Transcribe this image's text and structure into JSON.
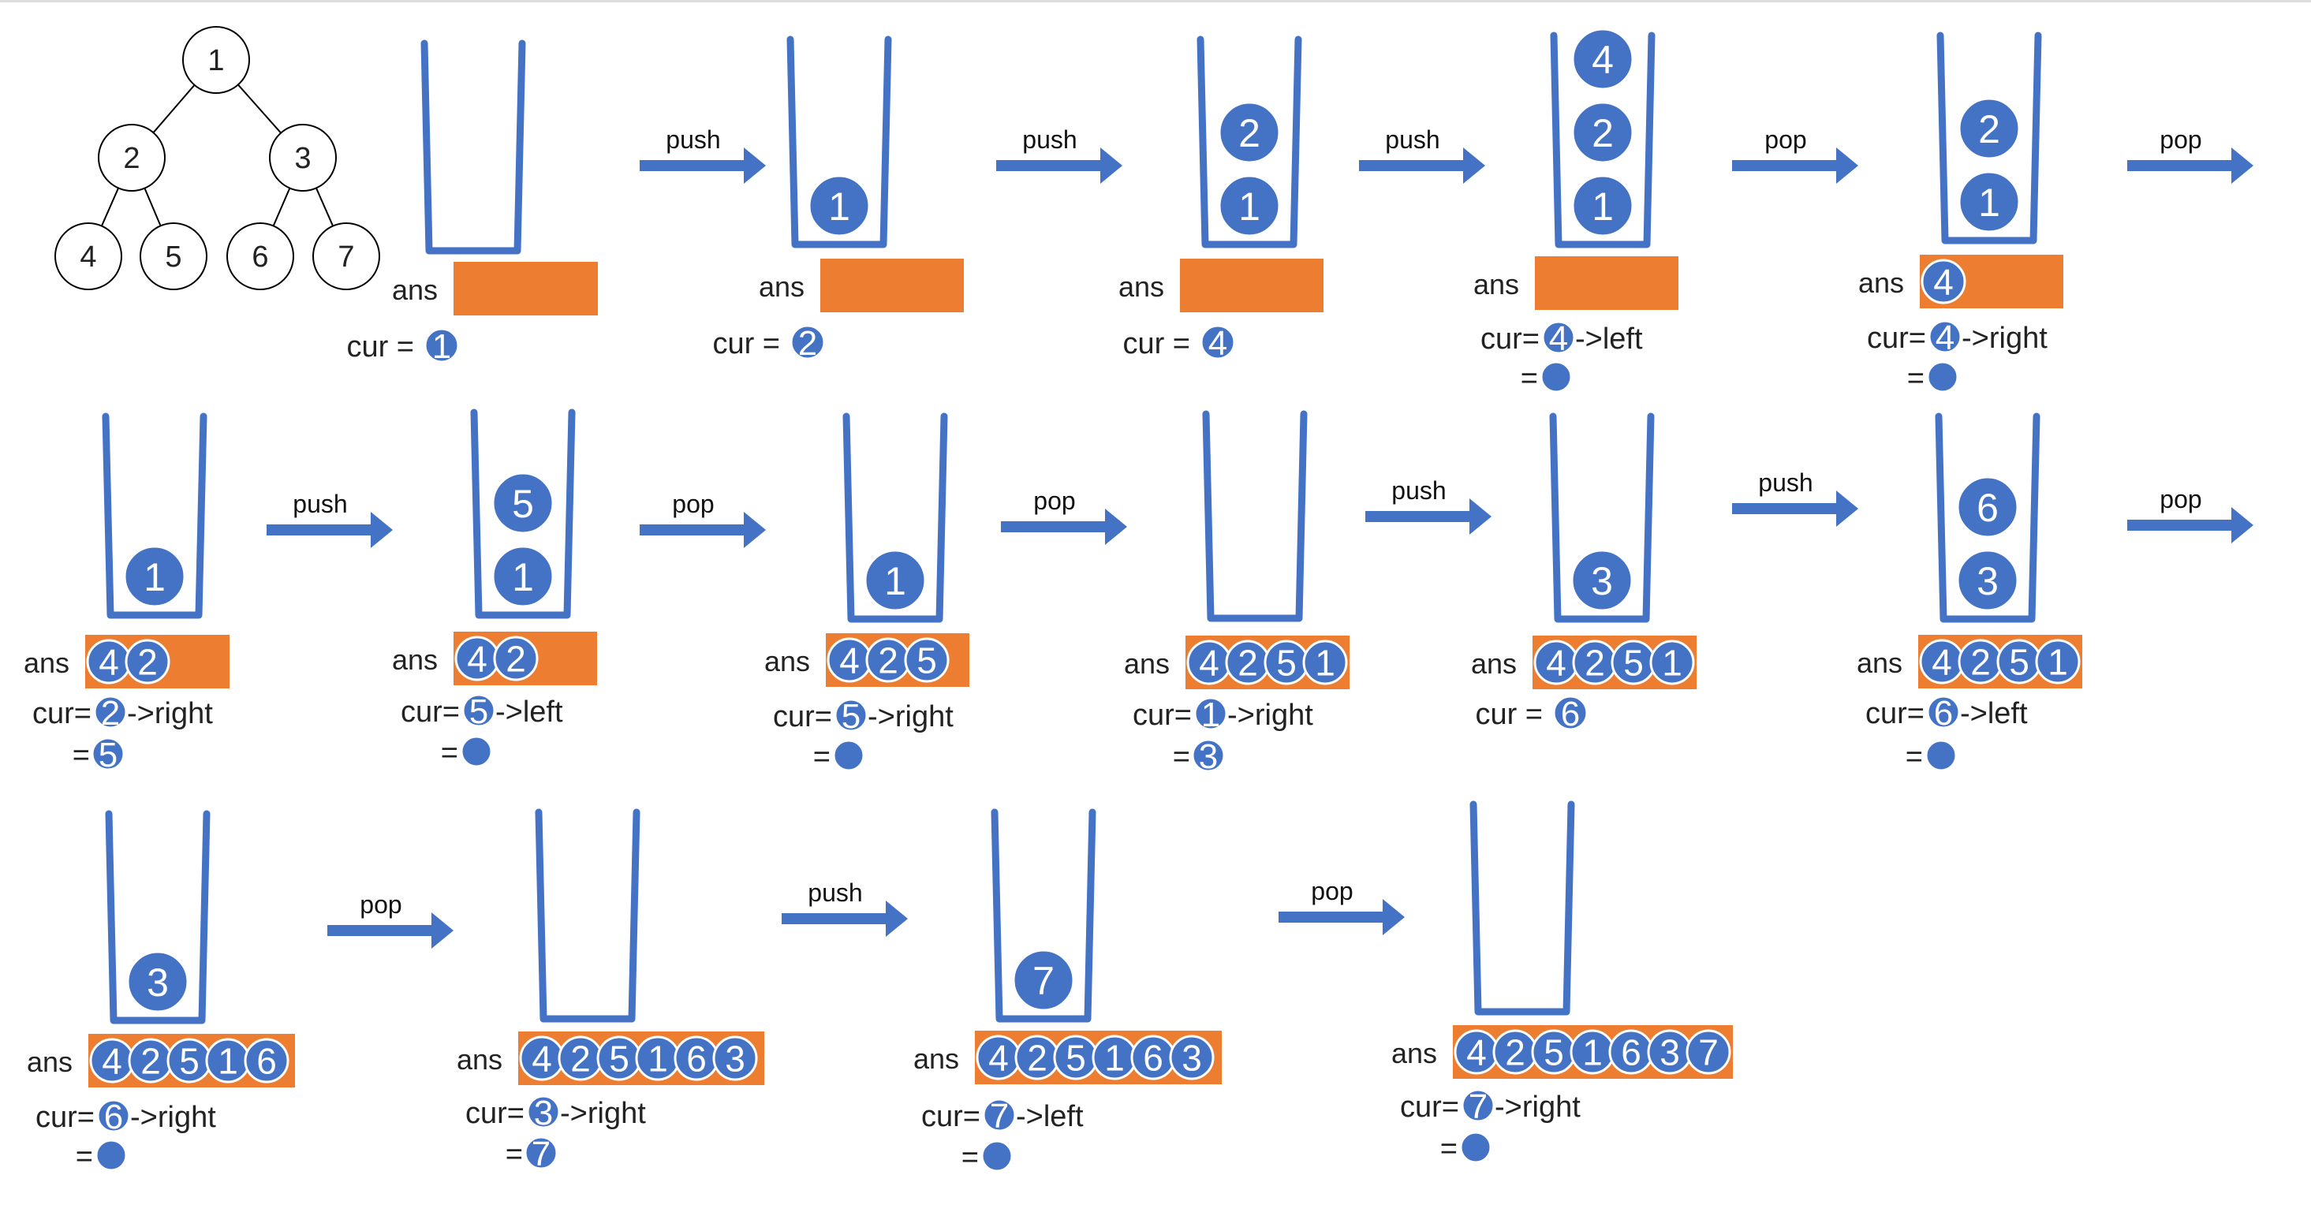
{
  "tree": {
    "nodes": [
      {
        "id": "1"
      },
      {
        "id": "2"
      },
      {
        "id": "3"
      },
      {
        "id": "4"
      },
      {
        "id": "5"
      },
      {
        "id": "6"
      },
      {
        "id": "7"
      }
    ],
    "edges": [
      [
        "1",
        "2"
      ],
      [
        "1",
        "3"
      ],
      [
        "2",
        "4"
      ],
      [
        "2",
        "5"
      ],
      [
        "3",
        "6"
      ],
      [
        "3",
        "7"
      ]
    ]
  },
  "labels": {
    "ans": "ans",
    "cur_eq": "cur =",
    "cur": "cur=",
    "eq": "=",
    "left": "->left",
    "right": "->right"
  },
  "colors": {
    "ball": "#4472c4",
    "ans_box": "#ed7d31",
    "arrow": "#4472c4",
    "cup": "#4472c4"
  },
  "steps": [
    {
      "stack": [],
      "ans": [],
      "cur": "1",
      "dir": null,
      "result": null,
      "empty_result": false
    },
    {
      "stack": [
        "1"
      ],
      "ans": [],
      "cur": "2",
      "dir": null,
      "result": null,
      "empty_result": false
    },
    {
      "stack": [
        "1",
        "2"
      ],
      "ans": [],
      "cur": "4",
      "dir": null,
      "result": null,
      "empty_result": false
    },
    {
      "stack": [
        "1",
        "2",
        "4"
      ],
      "ans": [],
      "cur": "4",
      "dir": "->left",
      "result": null,
      "empty_result": true
    },
    {
      "stack": [
        "1",
        "2"
      ],
      "ans": [
        "4"
      ],
      "cur": "4",
      "dir": "->right",
      "result": null,
      "empty_result": true
    },
    {
      "stack": [
        "1"
      ],
      "ans": [
        "4",
        "2"
      ],
      "cur": "2",
      "dir": "->right",
      "result": "5",
      "empty_result": false
    },
    {
      "stack": [
        "1",
        "5"
      ],
      "ans": [
        "4",
        "2"
      ],
      "cur": "5",
      "dir": "->left",
      "result": null,
      "empty_result": true
    },
    {
      "stack": [
        "1"
      ],
      "ans": [
        "4",
        "2",
        "5"
      ],
      "cur": "5",
      "dir": "->right",
      "result": null,
      "empty_result": true
    },
    {
      "stack": [],
      "ans": [
        "4",
        "2",
        "5",
        "1"
      ],
      "cur": "1",
      "dir": "->right",
      "result": "3",
      "empty_result": false
    },
    {
      "stack": [
        "3"
      ],
      "ans": [
        "4",
        "2",
        "5",
        "1"
      ],
      "cur": "6",
      "dir": null,
      "result": null,
      "empty_result": false
    },
    {
      "stack": [
        "3",
        "6"
      ],
      "ans": [
        "4",
        "2",
        "5",
        "1"
      ],
      "cur": "6",
      "dir": "->left",
      "result": null,
      "empty_result": true
    },
    {
      "stack": [
        "3"
      ],
      "ans": [
        "4",
        "2",
        "5",
        "1",
        "6"
      ],
      "cur": "6",
      "dir": "->right",
      "result": null,
      "empty_result": true
    },
    {
      "stack": [],
      "ans": [
        "4",
        "2",
        "5",
        "1",
        "6",
        "3"
      ],
      "cur": "3",
      "dir": "->right",
      "result": "7",
      "empty_result": false
    },
    {
      "stack": [
        "7"
      ],
      "ans": [
        "4",
        "2",
        "5",
        "1",
        "6",
        "3"
      ],
      "cur": "7",
      "dir": "->left",
      "result": null,
      "empty_result": true
    },
    {
      "stack": [],
      "ans": [
        "4",
        "2",
        "5",
        "1",
        "6",
        "3",
        "7"
      ],
      "cur": "7",
      "dir": "->right",
      "result": null,
      "empty_result": true
    }
  ],
  "arrows": [
    {
      "label": "push"
    },
    {
      "label": "push"
    },
    {
      "label": "push"
    },
    {
      "label": "pop"
    },
    {
      "label": "pop"
    },
    {
      "label": "push"
    },
    {
      "label": "pop"
    },
    {
      "label": "pop"
    },
    {
      "label": "push"
    },
    {
      "label": "push"
    },
    {
      "label": "pop"
    },
    {
      "label": "pop"
    },
    {
      "label": "push"
    },
    {
      "label": "pop"
    }
  ]
}
